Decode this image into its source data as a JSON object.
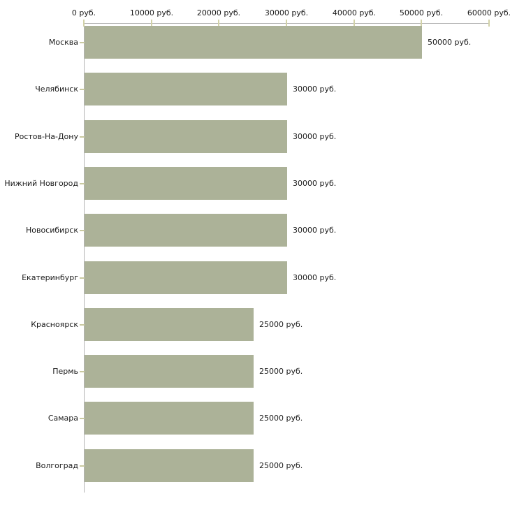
{
  "chart_data": {
    "type": "bar",
    "orientation": "horizontal",
    "title": "",
    "xlabel": "",
    "ylabel": "",
    "unit": "руб.",
    "categories": [
      "Москва",
      "Челябинск",
      "Ростов-На-Дону",
      "Нижний Новгород",
      "Новосибирск",
      "Екатеринбург",
      "Красноярск",
      "Пермь",
      "Самара",
      "Волгоград"
    ],
    "values": [
      50000,
      30000,
      30000,
      30000,
      30000,
      30000,
      25000,
      25000,
      25000,
      25000
    ],
    "bar_labels": [
      "50000 руб.",
      "30000 руб.",
      "30000 руб.",
      "30000 руб.",
      "30000 руб.",
      "30000 руб.",
      "25000 руб.",
      "25000 руб.",
      "25000 руб.",
      "25000 руб."
    ],
    "x_axis": {
      "position": "top",
      "min": 0,
      "max": 60000,
      "tick_values": [
        0,
        10000,
        20000,
        30000,
        40000,
        50000,
        60000
      ],
      "tick_labels": [
        "0 руб.",
        "10000 руб.",
        "20000 руб.",
        "30000 руб.",
        "40000 руб.",
        "50000 руб.",
        "60000 руб."
      ]
    },
    "grid": false,
    "legend": false,
    "colors": {
      "bar": "#acb298",
      "axis_line": "#b3b3b3",
      "axis_tick": "#d2d2a8",
      "category_tick": "#c9c9a0",
      "text": "#1a1a1a",
      "background": "#ffffff"
    }
  }
}
